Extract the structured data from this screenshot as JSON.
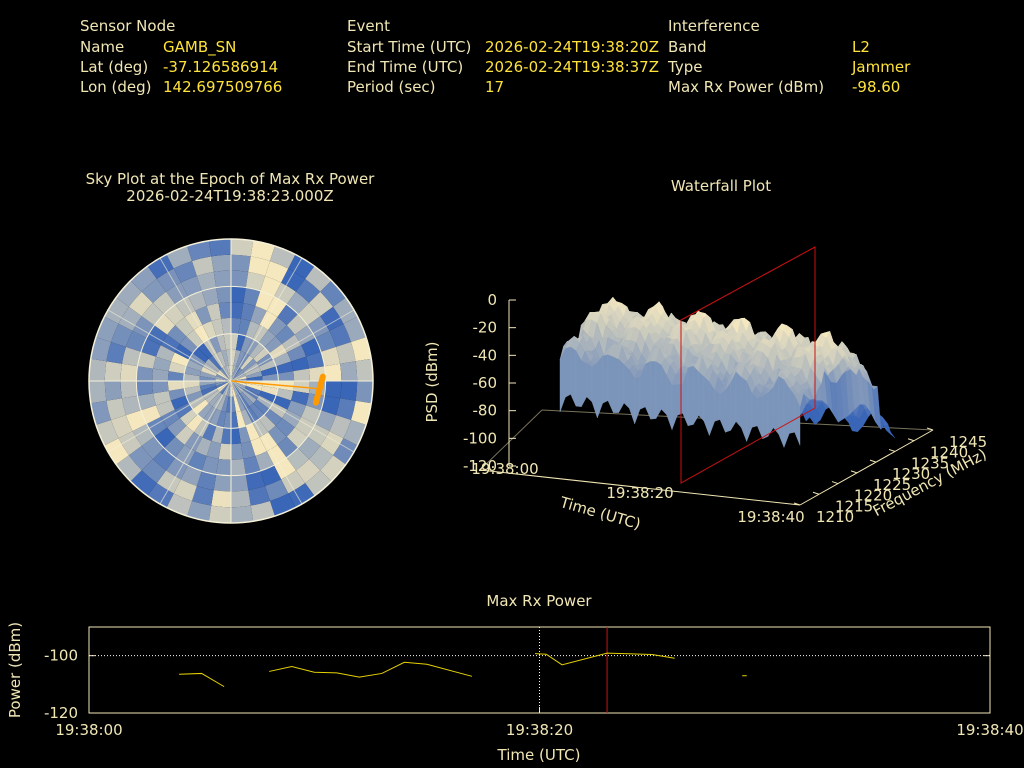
{
  "info": {
    "sensor": {
      "heading": "Sensor Node",
      "rows": [
        {
          "label": "Name",
          "value": "GAMB_SN"
        },
        {
          "label": "Lat (deg)",
          "value": "-37.126586914"
        },
        {
          "label": "Lon (deg)",
          "value": "142.697509766"
        }
      ]
    },
    "event": {
      "heading": "Event",
      "rows": [
        {
          "label": "Start Time (UTC)",
          "value": "2026-02-24T19:38:20Z"
        },
        {
          "label": "End Time (UTC)",
          "value": "2026-02-24T19:38:37Z"
        },
        {
          "label": "Period (sec)",
          "value": "17"
        }
      ]
    },
    "interference": {
      "heading": "Interference",
      "rows": [
        {
          "label": "Band",
          "value": "L2"
        },
        {
          "label": "Type",
          "value": "Jammer"
        },
        {
          "label": "Max Rx Power (dBm)",
          "value": "-98.60"
        }
      ]
    }
  },
  "colors": {
    "label": "#f0e6b4",
    "value": "#ffe33a",
    "trace": "#e6d200",
    "cursor": "#cc1111",
    "source": "#ff9900",
    "surface_low": "#3a66b8",
    "surface_high": "#f5e8bf"
  },
  "chart_data": [
    {
      "type": "polar-heatmap",
      "title": "Sky Plot at the Epoch of Max Rx Power",
      "subtitle": "2026-02-24T19:38:23.000Z",
      "rings": 3,
      "grid": true,
      "source_azimuth_deg": 95,
      "source_elevation_deg": 25
    },
    {
      "type": "surface",
      "title": "Waterfall Plot",
      "xlabel": "Time (UTC)",
      "ylabel": "Frequency (MHz)",
      "zlabel": "PSD (dBm)",
      "x_ticks": [
        "19:38:00",
        "19:38:20",
        "19:38:40"
      ],
      "y_ticks": [
        1210,
        1215,
        1220,
        1225,
        1230,
        1235,
        1240,
        1245
      ],
      "z_ticks": [
        0,
        -20,
        -40,
        -60,
        -80,
        -100,
        -120
      ],
      "zlim": [
        -120,
        0
      ],
      "marker_time": "19:38:23"
    },
    {
      "type": "line",
      "title": "Max Rx Power",
      "xlabel": "Time (UTC)",
      "ylabel": "Power (dBm)",
      "x_ticks": [
        "19:38:00",
        "19:38:20",
        "19:38:40"
      ],
      "y_ticks": [
        -100,
        -120
      ],
      "xlim": [
        0,
        40
      ],
      "ylim": [
        -120,
        -90
      ],
      "reference_line": -100,
      "event_start": 20,
      "max_epoch": 23,
      "segments": [
        [
          [
            4,
            -106.5
          ],
          [
            5,
            -106.2
          ],
          [
            6,
            -110.8
          ]
        ],
        [
          [
            8,
            -105.5
          ],
          [
            9,
            -103.8
          ],
          [
            10,
            -105.8
          ],
          [
            11,
            -106
          ],
          [
            12,
            -107.5
          ],
          [
            13,
            -106.2
          ],
          [
            14,
            -102.3
          ],
          [
            15,
            -103
          ],
          [
            17,
            -107.2
          ]
        ],
        [
          [
            19.8,
            -99.3
          ],
          [
            20.3,
            -99.5
          ],
          [
            21,
            -103.2
          ],
          [
            23,
            -99.1
          ],
          [
            25,
            -99.6
          ],
          [
            26,
            -100.9
          ]
        ],
        [
          [
            29,
            -107
          ],
          [
            29.2,
            -107
          ]
        ]
      ]
    }
  ]
}
